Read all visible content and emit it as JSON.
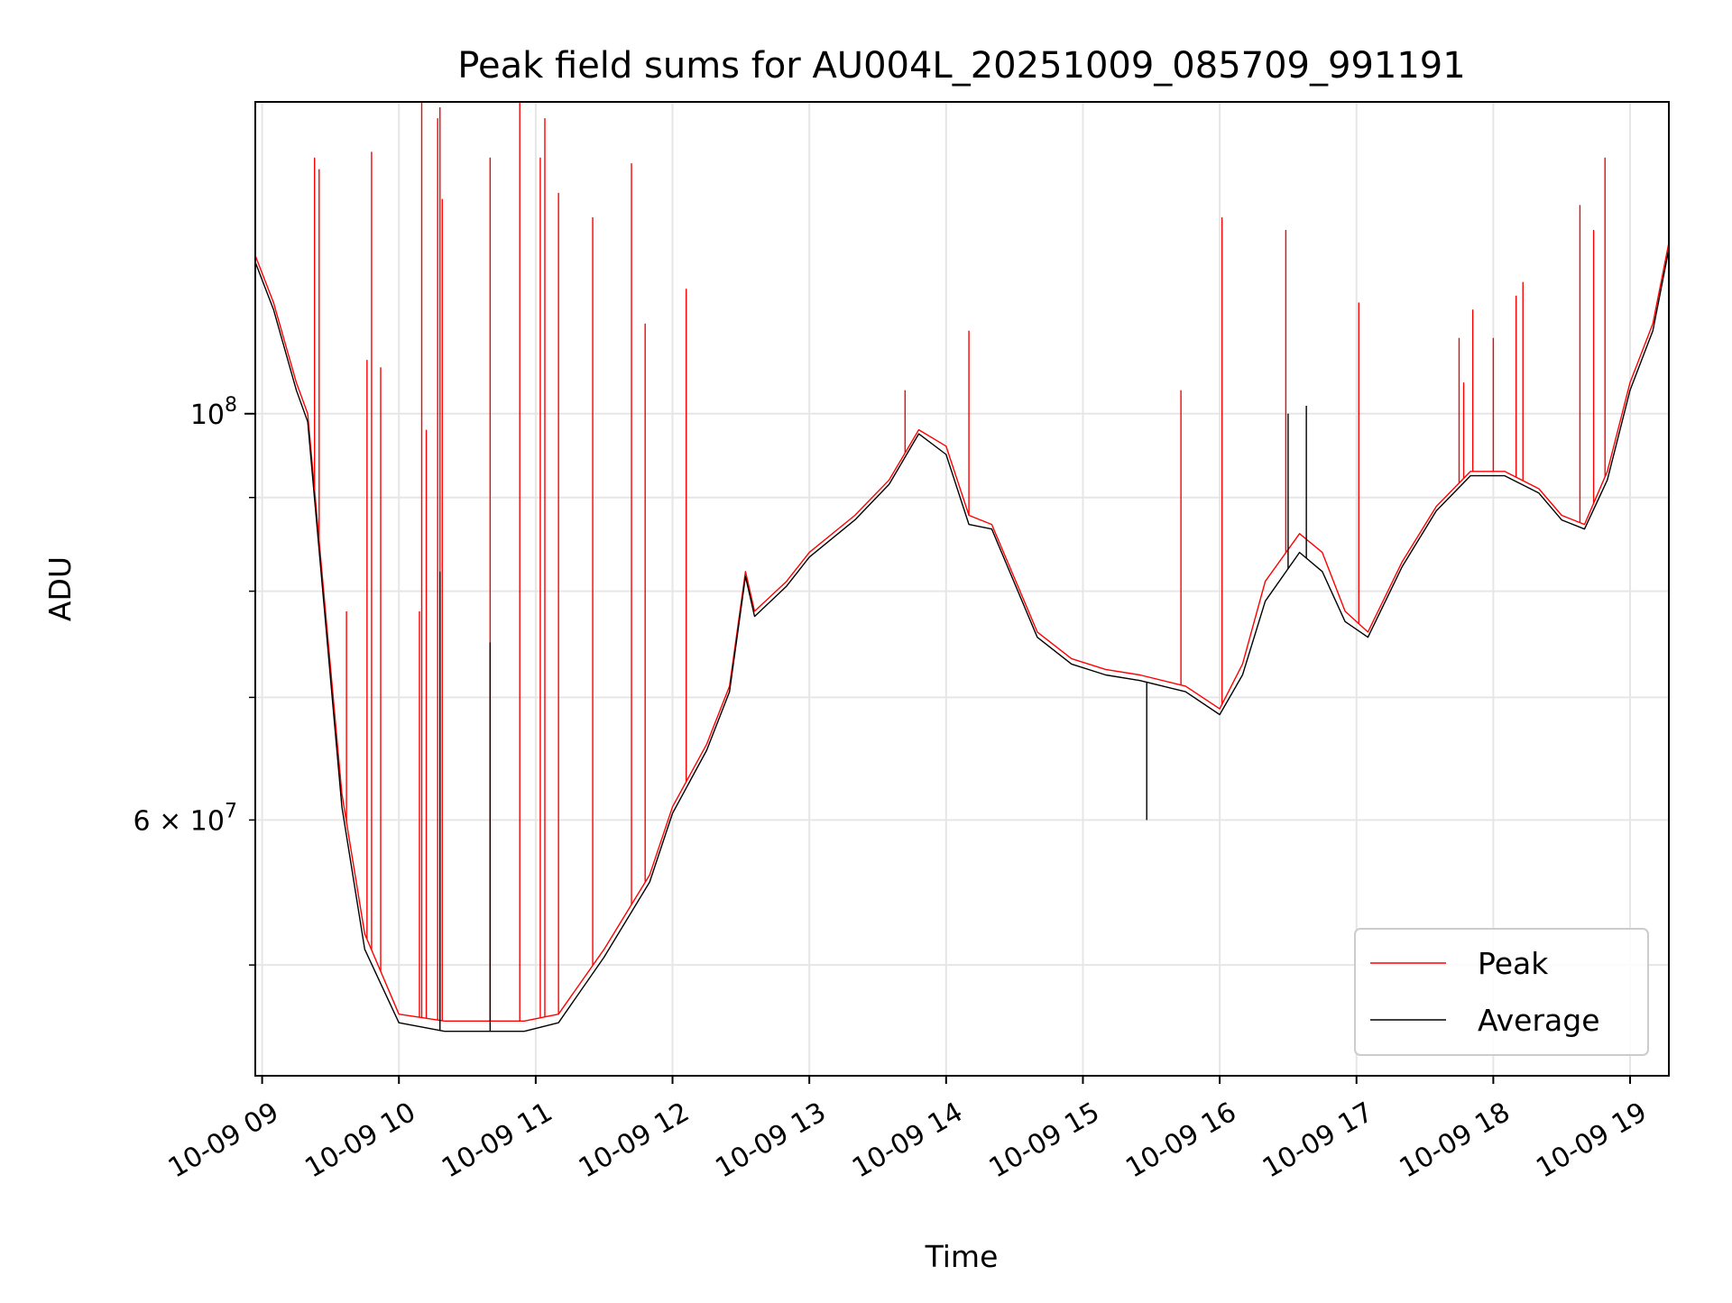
{
  "chart_data": {
    "type": "line",
    "title": "Peak field sums for AU004L_20251009_085709_991191",
    "xlabel": "Time",
    "ylabel": "ADU",
    "y_scale": "log",
    "ylim": [
      43500000,
      148000000
    ],
    "xlim": [
      "2025-10-09 08:57",
      "2025-10-09 19:17"
    ],
    "grid": true,
    "legend_position": "lower right",
    "x_ticks": [
      {
        "value": "2025-10-09 09:00",
        "label": "10-09 09"
      },
      {
        "value": "2025-10-09 10:00",
        "label": "10-09 10"
      },
      {
        "value": "2025-10-09 11:00",
        "label": "10-09 11"
      },
      {
        "value": "2025-10-09 12:00",
        "label": "10-09 12"
      },
      {
        "value": "2025-10-09 13:00",
        "label": "10-09 13"
      },
      {
        "value": "2025-10-09 14:00",
        "label": "10-09 14"
      },
      {
        "value": "2025-10-09 15:00",
        "label": "10-09 15"
      },
      {
        "value": "2025-10-09 16:00",
        "label": "10-09 16"
      },
      {
        "value": "2025-10-09 17:00",
        "label": "10-09 17"
      },
      {
        "value": "2025-10-09 18:00",
        "label": "10-09 18"
      },
      {
        "value": "2025-10-09 19:00",
        "label": "10-09 19"
      }
    ],
    "y_major_ticks": [
      {
        "value": 100000000,
        "label_base": "10",
        "label_exp": "8"
      }
    ],
    "y_minor_ticks": [
      {
        "value": 50000000,
        "label": ""
      },
      {
        "value": 60000000,
        "label": "6 × 10",
        "label_exp": "7"
      },
      {
        "value": 70000000,
        "label": ""
      },
      {
        "value": 80000000,
        "label": ""
      },
      {
        "value": 90000000,
        "label": ""
      }
    ],
    "series": [
      {
        "name": "Peak",
        "color": "#ff0000",
        "x": [
          "2025-10-09 08:57",
          "2025-10-09 09:05",
          "2025-10-09 09:15",
          "2025-10-09 09:20",
          "2025-10-09 09:27",
          "2025-10-09 09:35",
          "2025-10-09 09:45",
          "2025-10-09 10:00",
          "2025-10-09 10:20",
          "2025-10-09 10:40",
          "2025-10-09 10:55",
          "2025-10-09 11:10",
          "2025-10-09 11:30",
          "2025-10-09 11:50",
          "2025-10-09 12:00",
          "2025-10-09 12:15",
          "2025-10-09 12:25",
          "2025-10-09 12:32",
          "2025-10-09 12:36",
          "2025-10-09 12:50",
          "2025-10-09 13:00",
          "2025-10-09 13:20",
          "2025-10-09 13:35",
          "2025-10-09 13:48",
          "2025-10-09 14:00",
          "2025-10-09 14:10",
          "2025-10-09 14:20",
          "2025-10-09 14:40",
          "2025-10-09 14:55",
          "2025-10-09 15:10",
          "2025-10-09 15:25",
          "2025-10-09 15:45",
          "2025-10-09 16:00",
          "2025-10-09 16:10",
          "2025-10-09 16:20",
          "2025-10-09 16:35",
          "2025-10-09 16:45",
          "2025-10-09 16:55",
          "2025-10-09 17:05",
          "2025-10-09 17:20",
          "2025-10-09 17:35",
          "2025-10-09 17:50",
          "2025-10-09 18:05",
          "2025-10-09 18:20",
          "2025-10-09 18:30",
          "2025-10-09 18:40",
          "2025-10-09 18:50",
          "2025-10-09 19:00",
          "2025-10-09 19:10",
          "2025-10-09 19:17"
        ],
        "y": [
          122000000,
          115000000,
          104000000,
          100000000,
          80000000,
          62000000,
          52000000,
          47000000,
          46600000,
          46600000,
          46600000,
          47000000,
          51000000,
          56000000,
          61000000,
          66000000,
          71000000,
          82000000,
          78000000,
          81000000,
          84000000,
          88000000,
          92000000,
          98000000,
          96000000,
          88000000,
          87000000,
          76000000,
          73500000,
          72500000,
          72000000,
          71000000,
          69000000,
          73000000,
          81000000,
          86000000,
          84000000,
          78000000,
          76000000,
          83000000,
          89000000,
          93000000,
          93000000,
          91000000,
          88000000,
          87000000,
          93000000,
          104000000,
          112000000,
          124000000
        ]
      },
      {
        "name": "Average",
        "color": "#000000",
        "x": [
          "2025-10-09 08:57",
          "2025-10-09 09:05",
          "2025-10-09 09:15",
          "2025-10-09 09:20",
          "2025-10-09 09:27",
          "2025-10-09 09:35",
          "2025-10-09 09:45",
          "2025-10-09 10:00",
          "2025-10-09 10:20",
          "2025-10-09 10:40",
          "2025-10-09 10:55",
          "2025-10-09 11:10",
          "2025-10-09 11:30",
          "2025-10-09 11:50",
          "2025-10-09 12:00",
          "2025-10-09 12:15",
          "2025-10-09 12:25",
          "2025-10-09 12:32",
          "2025-10-09 12:36",
          "2025-10-09 12:50",
          "2025-10-09 13:00",
          "2025-10-09 13:20",
          "2025-10-09 13:35",
          "2025-10-09 13:48",
          "2025-10-09 14:00",
          "2025-10-09 14:10",
          "2025-10-09 14:20",
          "2025-10-09 14:40",
          "2025-10-09 14:55",
          "2025-10-09 15:10",
          "2025-10-09 15:25",
          "2025-10-09 15:45",
          "2025-10-09 16:00",
          "2025-10-09 16:10",
          "2025-10-09 16:20",
          "2025-10-09 16:35",
          "2025-10-09 16:45",
          "2025-10-09 16:55",
          "2025-10-09 17:05",
          "2025-10-09 17:20",
          "2025-10-09 17:35",
          "2025-10-09 17:50",
          "2025-10-09 18:05",
          "2025-10-09 18:20",
          "2025-10-09 18:30",
          "2025-10-09 18:40",
          "2025-10-09 18:50",
          "2025-10-09 19:00",
          "2025-10-09 19:10",
          "2025-10-09 19:17"
        ],
        "y": [
          121000000,
          114000000,
          103000000,
          99000000,
          79000000,
          61000000,
          51000000,
          46500000,
          46000000,
          46000000,
          46000000,
          46500000,
          50500000,
          55500000,
          60500000,
          65500000,
          70500000,
          81500000,
          77500000,
          80500000,
          83500000,
          87500000,
          91500000,
          97500000,
          95000000,
          87000000,
          86500000,
          75500000,
          73000000,
          72000000,
          71500000,
          70500000,
          68500000,
          72000000,
          79000000,
          84000000,
          82000000,
          77000000,
          75500000,
          82500000,
          88500000,
          92500000,
          92500000,
          90500000,
          87500000,
          86500000,
          92000000,
          103000000,
          111000000,
          123000000
        ]
      }
    ],
    "spikes": [
      {
        "series": "Peak",
        "x": "2025-10-09 09:23",
        "y": 138000000
      },
      {
        "series": "Peak",
        "x": "2025-10-09 09:25",
        "y": 136000000
      },
      {
        "series": "Peak",
        "x": "2025-10-09 09:37",
        "y": 78000000
      },
      {
        "series": "Peak",
        "x": "2025-10-09 09:46",
        "y": 107000000
      },
      {
        "series": "Peak",
        "x": "2025-10-09 09:48",
        "y": 139000000
      },
      {
        "series": "Peak",
        "x": "2025-10-09 09:52",
        "y": 106000000
      },
      {
        "series": "Peak",
        "x": "2025-10-09 10:09",
        "y": 78000000
      },
      {
        "series": "Peak",
        "x": "2025-10-09 10:10",
        "y": 148000000
      },
      {
        "series": "Peak",
        "x": "2025-10-09 10:12",
        "y": 98000000
      },
      {
        "series": "Peak",
        "x": "2025-10-09 10:17",
        "y": 145000000
      },
      {
        "series": "Peak",
        "x": "2025-10-09 10:18",
        "y": 147000000
      },
      {
        "series": "Peak",
        "x": "2025-10-09 10:19",
        "y": 131000000
      },
      {
        "series": "Peak",
        "x": "2025-10-09 10:40",
        "y": 138000000
      },
      {
        "series": "Peak",
        "x": "2025-10-09 10:53",
        "y": 148000000
      },
      {
        "series": "Peak",
        "x": "2025-10-09 11:02",
        "y": 138000000
      },
      {
        "series": "Peak",
        "x": "2025-10-09 11:04",
        "y": 145000000
      },
      {
        "series": "Peak",
        "x": "2025-10-09 11:10",
        "y": 132000000
      },
      {
        "series": "Peak",
        "x": "2025-10-09 11:25",
        "y": 128000000
      },
      {
        "series": "Peak",
        "x": "2025-10-09 11:42",
        "y": 137000000
      },
      {
        "series": "Peak",
        "x": "2025-10-09 11:48",
        "y": 112000000
      },
      {
        "series": "Peak",
        "x": "2025-10-09 12:06",
        "y": 117000000
      },
      {
        "series": "Peak",
        "x": "2025-10-09 13:42",
        "y": 103000000
      },
      {
        "series": "Peak",
        "x": "2025-10-09 14:10",
        "y": 111000000
      },
      {
        "series": "Peak",
        "x": "2025-10-09 15:43",
        "y": 103000000
      },
      {
        "series": "Peak",
        "x": "2025-10-09 16:01",
        "y": 128000000
      },
      {
        "series": "Peak",
        "x": "2025-10-09 16:29",
        "y": 126000000
      },
      {
        "series": "Peak",
        "x": "2025-10-09 17:01",
        "y": 115000000
      },
      {
        "series": "Peak",
        "x": "2025-10-09 17:45",
        "y": 110000000
      },
      {
        "series": "Peak",
        "x": "2025-10-09 17:47",
        "y": 104000000
      },
      {
        "series": "Peak",
        "x": "2025-10-09 17:51",
        "y": 114000000
      },
      {
        "series": "Peak",
        "x": "2025-10-09 18:00",
        "y": 110000000
      },
      {
        "series": "Peak",
        "x": "2025-10-09 18:10",
        "y": 116000000
      },
      {
        "series": "Peak",
        "x": "2025-10-09 18:13",
        "y": 118000000
      },
      {
        "series": "Peak",
        "x": "2025-10-09 18:38",
        "y": 130000000
      },
      {
        "series": "Peak",
        "x": "2025-10-09 18:44",
        "y": 126000000
      },
      {
        "series": "Peak",
        "x": "2025-10-09 18:49",
        "y": 138000000
      },
      {
        "series": "Average",
        "x": "2025-10-09 10:18",
        "y": 82000000
      },
      {
        "series": "Average",
        "x": "2025-10-09 10:40",
        "y": 75000000
      },
      {
        "series": "Average",
        "x": "2025-10-09 15:28",
        "y": 60000000
      },
      {
        "series": "Average",
        "x": "2025-10-09 16:30",
        "y": 100000000
      },
      {
        "series": "Average",
        "x": "2025-10-09 16:38",
        "y": 101000000
      }
    ]
  }
}
